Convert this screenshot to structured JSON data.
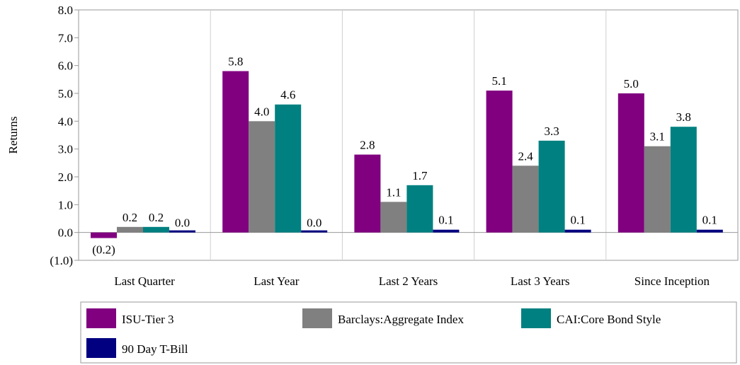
{
  "chart_data": {
    "type": "bar",
    "title": "",
    "xlabel": "",
    "ylabel": "Returns",
    "ylim": [
      -1,
      8
    ],
    "yticks": [
      -1,
      0,
      1,
      2,
      3,
      4,
      5,
      6,
      7,
      8
    ],
    "ytick_labels": [
      "(1.0)",
      "0.0",
      "1.0",
      "2.0",
      "3.0",
      "4.0",
      "5.0",
      "6.0",
      "7.0",
      "8.0"
    ],
    "categories": [
      "Last Quarter",
      "Last Year",
      "Last 2 Years",
      "Last 3 Years",
      "Since Inception"
    ],
    "series": [
      {
        "name": "ISU-Tier 3",
        "color": "#800080",
        "values": [
          -0.2,
          5.8,
          2.8,
          5.1,
          5.0
        ],
        "labels": [
          "(0.2)",
          "5.8",
          "2.8",
          "5.1",
          "5.0"
        ]
      },
      {
        "name": "Barclays:Aggregate Index",
        "color": "#808080",
        "values": [
          0.2,
          4.0,
          1.1,
          2.4,
          3.1
        ],
        "labels": [
          "0.2",
          "4.0",
          "1.1",
          "2.4",
          "3.1"
        ]
      },
      {
        "name": "CAI:Core Bond Style",
        "color": "#008080",
        "values": [
          0.2,
          4.6,
          1.7,
          3.3,
          3.8
        ],
        "labels": [
          "0.2",
          "4.6",
          "1.7",
          "3.3",
          "3.8"
        ]
      },
      {
        "name": "90 Day T-Bill",
        "color": "#000080",
        "values": [
          0.0,
          0.0,
          0.1,
          0.1,
          0.1
        ],
        "labels": [
          "0.0",
          "0.0",
          "0.1",
          "0.1",
          "0.1"
        ]
      }
    ],
    "negative_label_color": "#c0392b",
    "grid": false,
    "legend_position": "bottom"
  }
}
